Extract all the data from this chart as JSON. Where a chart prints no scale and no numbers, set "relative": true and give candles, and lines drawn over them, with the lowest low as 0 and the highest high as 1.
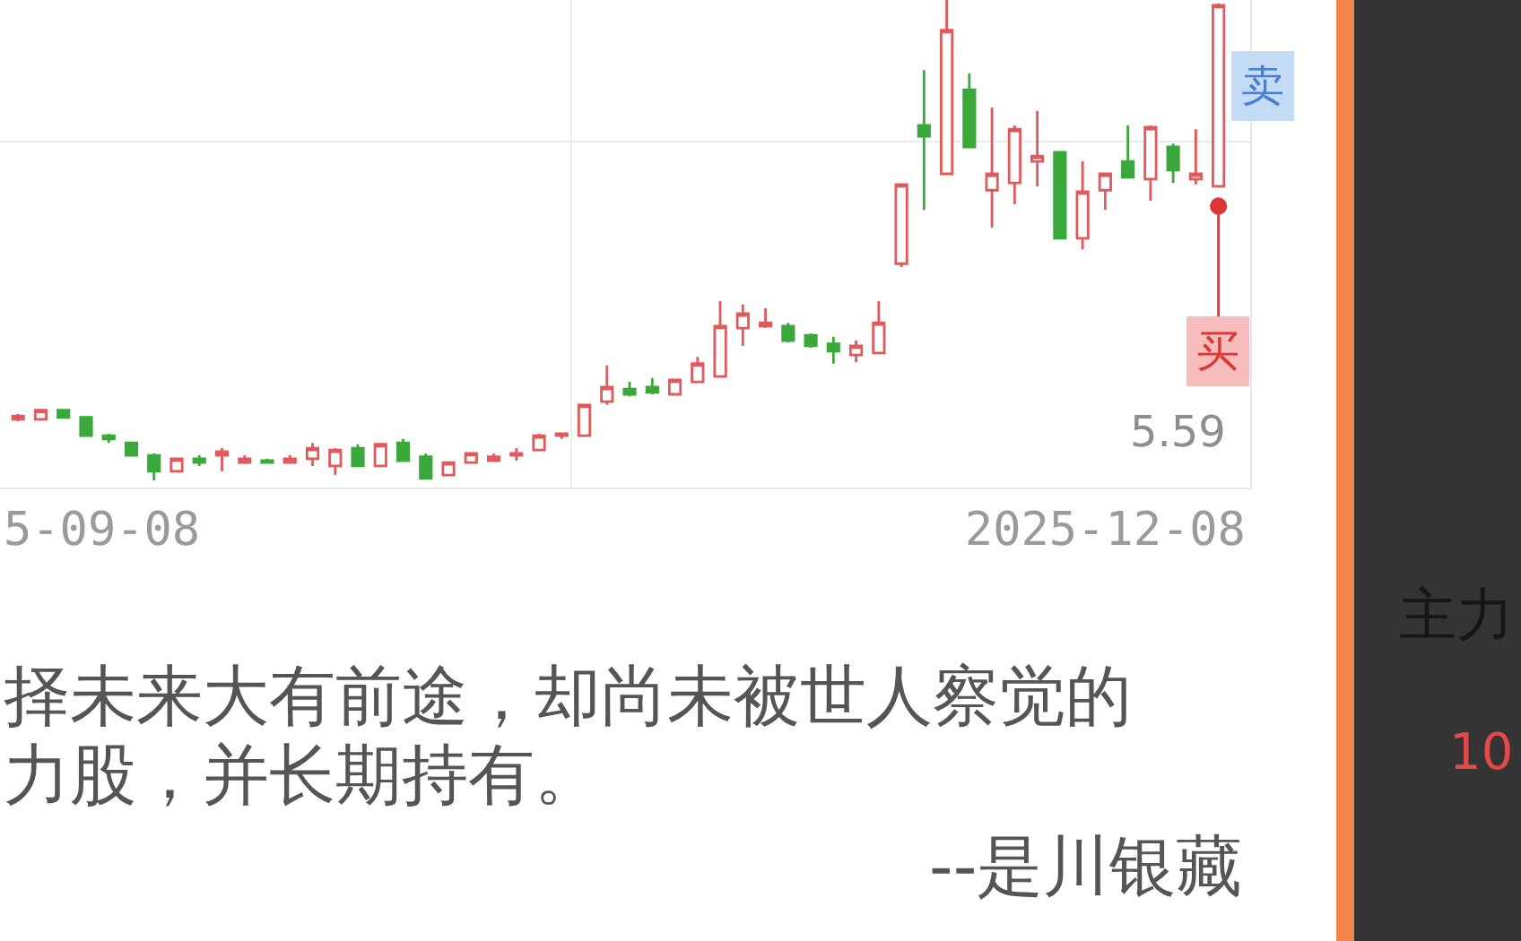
{
  "chart_data": {
    "type": "candlestick",
    "relative": true,
    "grid": true,
    "categories": [
      null,
      null,
      null,
      null,
      null,
      null,
      null,
      null,
      null,
      null,
      null,
      null,
      null,
      null,
      null,
      null,
      null,
      null,
      null,
      null,
      null,
      null,
      null,
      null,
      null,
      null,
      null,
      null,
      null,
      null,
      null,
      null,
      null,
      null,
      null,
      null,
      null,
      null,
      null,
      null,
      null,
      null,
      null,
      null,
      null,
      null,
      null,
      null,
      "2025-12-08",
      null,
      null,
      null,
      null,
      null
    ],
    "ohlc": [
      [
        0.127,
        0.138,
        0.123,
        0.134
      ],
      [
        0.127,
        0.146,
        0.127,
        0.146
      ],
      [
        0.146,
        0.146,
        0.131,
        0.131
      ],
      [
        0.131,
        0.131,
        0.093,
        0.093
      ],
      [
        0.093,
        0.097,
        0.078,
        0.086
      ],
      [
        0.078,
        0.078,
        0.052,
        0.052
      ],
      [
        0.052,
        0.056,
        0.0,
        0.019
      ],
      [
        0.019,
        0.045,
        0.019,
        0.045
      ],
      [
        0.045,
        0.052,
        0.03,
        0.037
      ],
      [
        0.052,
        0.067,
        0.019,
        0.06
      ],
      [
        0.037,
        0.052,
        0.034,
        0.045
      ],
      [
        0.041,
        0.045,
        0.037,
        0.037
      ],
      [
        0.037,
        0.052,
        0.037,
        0.045
      ],
      [
        0.045,
        0.078,
        0.03,
        0.067
      ],
      [
        0.03,
        0.067,
        0.011,
        0.063
      ],
      [
        0.067,
        0.075,
        0.03,
        0.03
      ],
      [
        0.03,
        0.075,
        0.03,
        0.075
      ],
      [
        0.078,
        0.086,
        0.041,
        0.041
      ],
      [
        0.049,
        0.056,
        0.004,
        0.004
      ],
      [
        0.011,
        0.037,
        0.011,
        0.037
      ],
      [
        0.037,
        0.056,
        0.037,
        0.056
      ],
      [
        0.041,
        0.056,
        0.041,
        0.049
      ],
      [
        0.052,
        0.067,
        0.041,
        0.056
      ],
      [
        0.063,
        0.097,
        0.063,
        0.093
      ],
      [
        0.093,
        0.097,
        0.086,
        0.097
      ],
      [
        0.093,
        0.157,
        0.093,
        0.157
      ],
      [
        0.164,
        0.239,
        0.157,
        0.194
      ],
      [
        0.19,
        0.205,
        0.175,
        0.179
      ],
      [
        0.194,
        0.213,
        0.179,
        0.183
      ],
      [
        0.179,
        0.209,
        0.179,
        0.209
      ],
      [
        0.205,
        0.257,
        0.205,
        0.243
      ],
      [
        0.216,
        0.373,
        0.216,
        0.321
      ],
      [
        0.317,
        0.366,
        0.28,
        0.347
      ],
      [
        0.321,
        0.358,
        0.317,
        0.328
      ],
      [
        0.321,
        0.328,
        0.287,
        0.291
      ],
      [
        0.302,
        0.306,
        0.276,
        0.28
      ],
      [
        0.284,
        0.299,
        0.243,
        0.269
      ],
      [
        0.261,
        0.291,
        0.246,
        0.28
      ],
      [
        0.265,
        0.373,
        0.265,
        0.328
      ],
      [
        0.451,
        0.616,
        0.444,
        0.616
      ],
      [
        0.739,
        0.854,
        0.563,
        0.716
      ],
      [
        0.638,
        1.0,
        0.638,
        0.937
      ],
      [
        0.813,
        0.847,
        0.694,
        0.694
      ],
      [
        0.604,
        0.776,
        0.526,
        0.638
      ],
      [
        0.619,
        0.739,
        0.575,
        0.731
      ],
      [
        0.664,
        0.769,
        0.612,
        0.675
      ],
      [
        0.683,
        0.683,
        0.504,
        0.504
      ],
      [
        0.504,
        0.664,
        0.481,
        0.601
      ],
      [
        0.604,
        0.638,
        0.563,
        0.638
      ],
      [
        0.664,
        0.739,
        0.631,
        0.631
      ],
      [
        0.627,
        0.739,
        0.582,
        0.735
      ],
      [
        0.694,
        0.701,
        0.619,
        0.646
      ],
      [
        0.627,
        0.731,
        0.616,
        0.638
      ],
      [
        0.612,
        0.993,
        0.612,
        0.989
      ]
    ],
    "colors": [
      "#e2595c",
      "#e2595c",
      "#3aa83a",
      "#3aa83a",
      "#3aa83a",
      "#3aa83a",
      "#3aa83a",
      "#e2595c",
      "#3aa83a",
      "#e2595c",
      "#e2595c",
      "#3aa83a",
      "#e2595c",
      "#e2595c",
      "#e2595c",
      "#3aa83a",
      "#e2595c",
      "#3aa83a",
      "#3aa83a",
      "#e2595c",
      "#e2595c",
      "#e2595c",
      "#e2595c",
      "#e2595c",
      "#e2595c",
      "#e2595c",
      "#e2595c",
      "#3aa83a",
      "#3aa83a",
      "#e2595c",
      "#e2595c",
      "#e2595c",
      "#e2595c",
      "#e2595c",
      "#3aa83a",
      "#3aa83a",
      "#3aa83a",
      "#e2595c",
      "#e2595c",
      "#e2595c",
      "#3aa83a",
      "#e2595c",
      "#3aa83a",
      "#e2595c",
      "#e2595c",
      "#e2595c",
      "#3aa83a",
      "#e2595c",
      "#e2595c",
      "#3aa83a",
      "#e2595c",
      "#3aa83a",
      "#e2595c",
      "#e2595c"
    ],
    "annotations": [
      "5-09-08",
      "5.59",
      {
        "text": "买",
        "y": 0.571
      },
      "卖",
      "择未来大有前途，却尚未被世人察觉的",
      "力股，并长期持有。",
      "--是川银藏",
      "主力",
      "10"
    ]
  }
}
